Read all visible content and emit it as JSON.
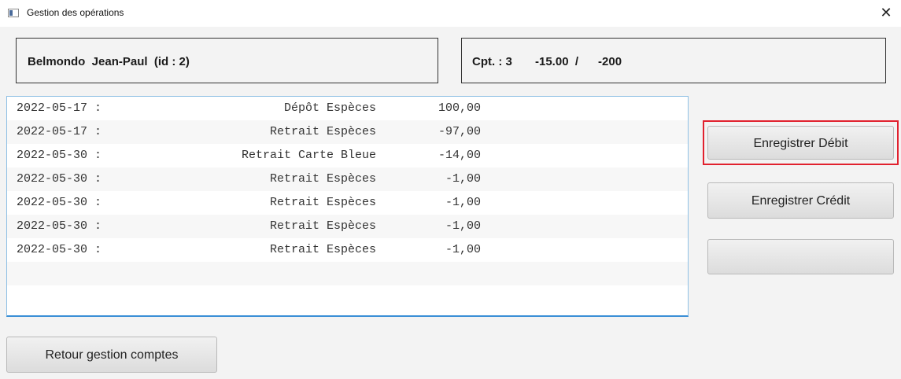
{
  "window": {
    "title": "Gestion des opérations",
    "close_glyph": "✕"
  },
  "client_panel": {
    "text": "Belmondo  Jean-Paul  (id : 2)"
  },
  "account_panel": {
    "text": "Cpt. : 3       -15.00  /      -200"
  },
  "operations": [
    {
      "date": "2022-05-17 :",
      "label": "Dépôt Espèces",
      "amount": "100,00"
    },
    {
      "date": "2022-05-17 :",
      "label": "Retrait Espèces",
      "amount": "-97,00"
    },
    {
      "date": "2022-05-30 :",
      "label": "Retrait Carte Bleue",
      "amount": "-14,00"
    },
    {
      "date": "2022-05-30 :",
      "label": "Retrait Espèces",
      "amount": "-1,00"
    },
    {
      "date": "2022-05-30 :",
      "label": "Retrait Espèces",
      "amount": "-1,00"
    },
    {
      "date": "2022-05-30 :",
      "label": "Retrait Espèces",
      "amount": "-1,00"
    },
    {
      "date": "2022-05-30 :",
      "label": "Retrait Espèces",
      "amount": "-1,00"
    }
  ],
  "buttons": {
    "debit": "Enregistrer Débit",
    "credit": "Enregistrer Crédit",
    "blank": "",
    "return": "Retour gestion comptes"
  },
  "colors": {
    "focus_highlight": "#e1212e",
    "list_border": "#3a8fd6"
  },
  "icons": {
    "app": "window-app-icon",
    "close": "close-icon"
  }
}
